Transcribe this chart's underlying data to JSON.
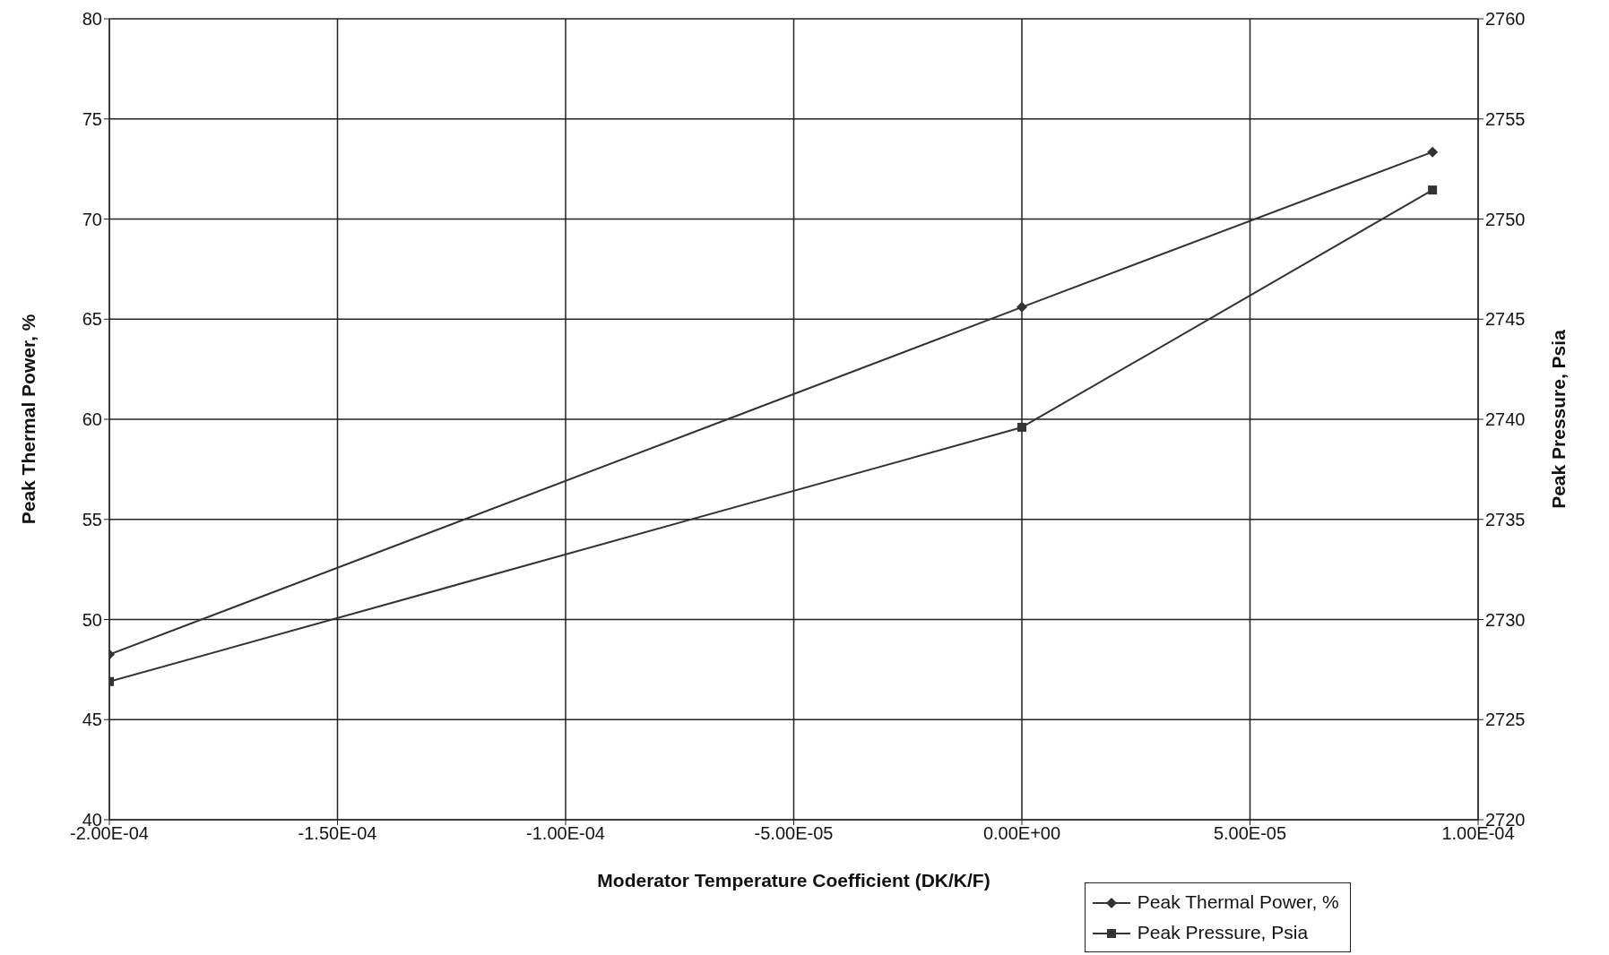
{
  "chart_data": {
    "type": "line",
    "xlabel": "Moderator Temperature Coefficient (DK/K/F)",
    "ylabel": "Peak Thermal Power, %",
    "y2label": "Peak Pressure, Psia",
    "series": [
      {
        "name": "Peak Thermal Power, %",
        "color": "#333333",
        "marker": "diamond",
        "x": [
          -0.0002,
          0,
          9e-05
        ],
        "values": [
          48.25,
          65.6,
          73.35
        ]
      },
      {
        "name": "Peak Pressure, Psia",
        "color": "#333333",
        "marker": "square",
        "axis": "y2",
        "x": [
          -0.0002,
          0,
          9e-05
        ],
        "values": [
          2726.9,
          2739.6,
          2751.45
        ]
      }
    ],
    "xlim": [
      -0.0002,
      0.0001
    ],
    "xticks": [
      {
        "value": -0.0002,
        "label": "-2.00E-04"
      },
      {
        "value": -0.00015,
        "label": "-1.50E-04"
      },
      {
        "value": -0.0001,
        "label": "-1.00E-04"
      },
      {
        "value": -5e-05,
        "label": "-5.00E-05"
      },
      {
        "value": 0,
        "label": "0.00E+00"
      },
      {
        "value": 5e-05,
        "label": "5.00E-05"
      },
      {
        "value": 0.0001,
        "label": "1.00E-04"
      }
    ],
    "ylim": [
      40,
      80
    ],
    "yticks": [
      40,
      45,
      50,
      55,
      60,
      65,
      70,
      75,
      80
    ],
    "y2lim": [
      2720,
      2760
    ],
    "y2ticks": [
      2720,
      2725,
      2730,
      2735,
      2740,
      2745,
      2750,
      2755,
      2760
    ],
    "grid": true,
    "legend": "bottom right",
    "line_style": "solid"
  }
}
